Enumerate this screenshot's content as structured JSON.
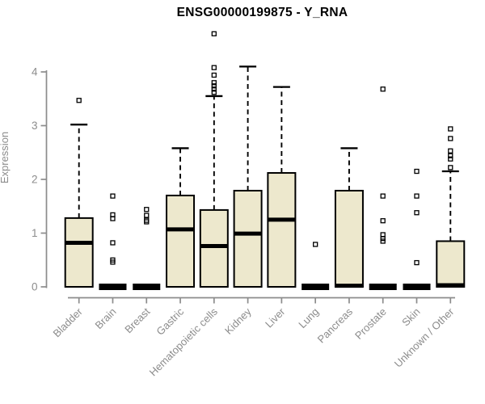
{
  "chart_data": {
    "type": "boxplot",
    "title": "ENSG00000199875 - Y_RNA",
    "ylabel": "Expression",
    "xlabel": "",
    "ylim": [
      0,
      4
    ],
    "yticks": [
      0,
      1,
      2,
      3,
      4
    ],
    "grid": false,
    "legend": false,
    "categories": [
      "Bladder",
      "Brain",
      "Breast",
      "Gastric",
      "Hematopoietic cells",
      "Kidney",
      "Liver",
      "Lung",
      "Pancreas",
      "Prostate",
      "Skin",
      "Unknown / Other"
    ],
    "boxes": [
      {
        "category": "Bladder",
        "q1": 0,
        "median": 0.82,
        "q3": 1.28,
        "whisker_low": 0,
        "whisker_high": 3.02,
        "outliers": [
          3.47
        ]
      },
      {
        "category": "Brain",
        "q1": 0,
        "median": 0,
        "q3": 0,
        "whisker_low": 0,
        "whisker_high": 0,
        "outliers": [
          1.69,
          1.34,
          1.27,
          0.82,
          0.5,
          0.46
        ]
      },
      {
        "category": "Breast",
        "q1": 0,
        "median": 0,
        "q3": 0,
        "whisker_low": 0,
        "whisker_high": 0,
        "outliers": [
          1.44,
          1.33,
          1.24,
          1.21
        ]
      },
      {
        "category": "Gastric",
        "q1": 0,
        "median": 1.07,
        "q3": 1.7,
        "whisker_low": 0,
        "whisker_high": 2.58,
        "outliers": []
      },
      {
        "category": "Hematopoietic cells",
        "q1": 0,
        "median": 0.76,
        "q3": 1.43,
        "whisker_low": 0,
        "whisker_high": 3.55,
        "outliers": [
          4.71,
          4.08,
          3.94,
          3.8,
          3.74,
          3.68,
          3.62
        ]
      },
      {
        "category": "Kidney",
        "q1": 0,
        "median": 0.99,
        "q3": 1.79,
        "whisker_low": 0,
        "whisker_high": 4.1,
        "outliers": []
      },
      {
        "category": "Liver",
        "q1": 0,
        "median": 1.25,
        "q3": 2.12,
        "whisker_low": 0,
        "whisker_high": 3.72,
        "outliers": []
      },
      {
        "category": "Lung",
        "q1": 0,
        "median": 0,
        "q3": 0,
        "whisker_low": 0,
        "whisker_high": 0,
        "outliers": [
          0.79
        ]
      },
      {
        "category": "Pancreas",
        "q1": 0,
        "median": 0.02,
        "q3": 1.79,
        "whisker_low": 0,
        "whisker_high": 2.58,
        "outliers": []
      },
      {
        "category": "Prostate",
        "q1": 0,
        "median": 0,
        "q3": 0,
        "whisker_low": 0,
        "whisker_high": 0,
        "outliers": [
          3.68,
          1.69,
          1.23,
          0.97,
          0.9,
          0.85
        ]
      },
      {
        "category": "Skin",
        "q1": 0,
        "median": 0,
        "q3": 0,
        "whisker_low": 0,
        "whisker_high": 0,
        "outliers": [
          2.15,
          1.69,
          1.38,
          0.45
        ]
      },
      {
        "category": "Unknown / Other",
        "q1": 0,
        "median": 0.03,
        "q3": 0.85,
        "whisker_low": 0,
        "whisker_high": 2.15,
        "outliers": [
          2.94,
          2.76,
          2.53,
          2.44,
          2.38,
          2.22
        ]
      }
    ],
    "colors": {
      "background": "#ffffff",
      "box_fill": "#EDE8CD",
      "box_border": "#000000",
      "median": "#000000",
      "whisker": "#000000",
      "outlier": "#000000",
      "axis": "#8C8C8C",
      "tick_label": "#8C8C8C",
      "title": "#000000"
    }
  }
}
